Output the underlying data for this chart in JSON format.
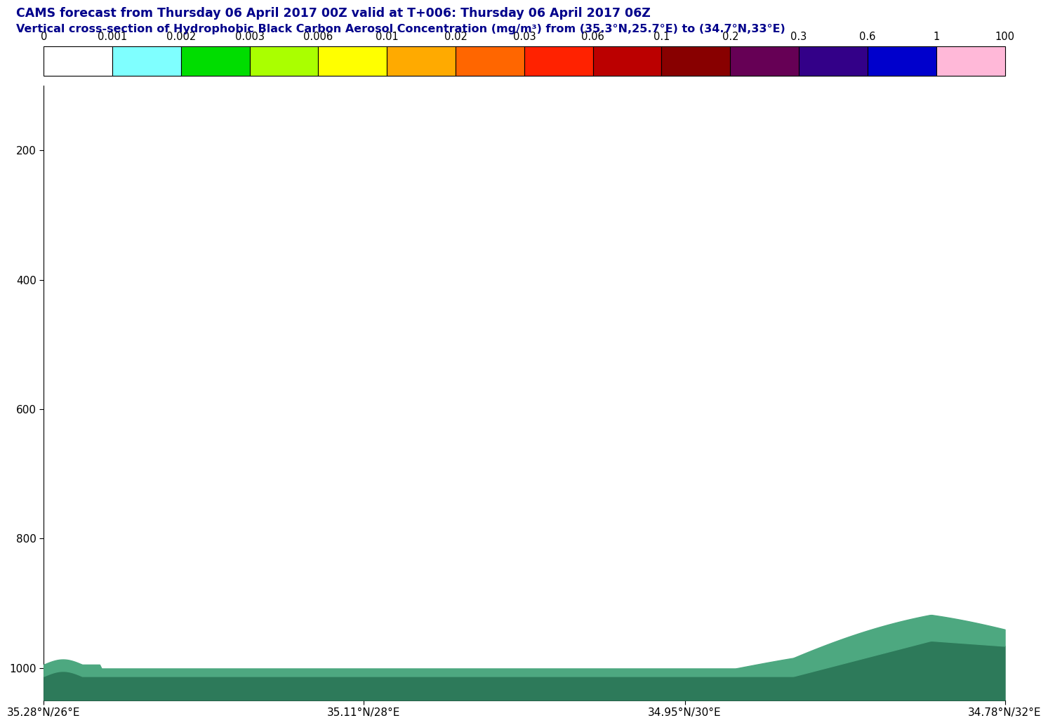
{
  "title1": "CAMS forecast from Thursday 06 April 2017 00Z valid at T+006: Thursday 06 April 2017 06Z",
  "title2": "Vertical cross-section of Hydrophobic Black Carbon Aerosol Concentration (mg/m³) from (35.3°N,25.7°E) to (34.7°N,33°E)",
  "title_color": "#00008B",
  "colorbar_labels": [
    "0",
    "0.001",
    "0.002",
    "0.003",
    "0.006",
    "0.01",
    "0.02",
    "0.03",
    "0.06",
    "0.1",
    "0.2",
    "0.3",
    "0.6",
    "1",
    "100"
  ],
  "colorbar_colors": [
    "#FFFFFF",
    "#7FFFFF",
    "#00DD00",
    "#AAFF00",
    "#FFFF00",
    "#FFAA00",
    "#FF6600",
    "#FF2200",
    "#BB0000",
    "#880000",
    "#660055",
    "#330088",
    "#0000CC",
    "#FFB8D8"
  ],
  "yticks": [
    200,
    400,
    600,
    800,
    1000
  ],
  "ymin": 100,
  "ymax": 1050,
  "xtick_labels": [
    "35.28°N/26°E",
    "35.11°N/28°E",
    "34.95°N/30°E",
    "34.78°N/32°E"
  ],
  "xtick_positions": [
    0.0,
    0.333,
    0.667,
    1.0
  ],
  "terrain_color_dark": "#2D7A5A",
  "terrain_color_light": "#4DA880",
  "background_color": "#FFFFFF"
}
